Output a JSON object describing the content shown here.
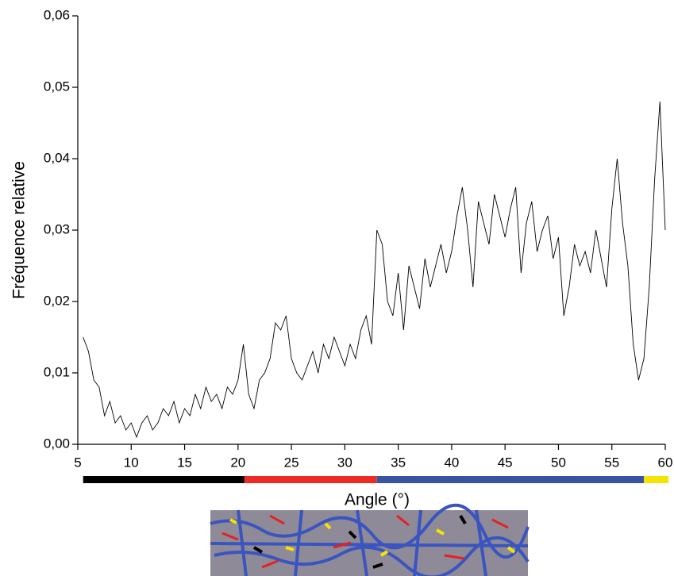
{
  "chart_data": {
    "type": "line",
    "xlabel": "Angle (°)",
    "ylabel": "Fréquence relative",
    "xlim": [
      5,
      60
    ],
    "ylim": [
      0,
      0.06
    ],
    "xticks": [
      5,
      10,
      15,
      20,
      25,
      30,
      35,
      40,
      45,
      50,
      55,
      60
    ],
    "yticks": [
      {
        "value": 0,
        "label": "0,00"
      },
      {
        "value": 0.01,
        "label": "0,01"
      },
      {
        "value": 0.02,
        "label": "0,02"
      },
      {
        "value": 0.03,
        "label": "0,03"
      },
      {
        "value": 0.04,
        "label": "0,04"
      },
      {
        "value": 0.05,
        "label": "0,05"
      },
      {
        "value": 0.06,
        "label": "0,06"
      }
    ],
    "color": "#000000",
    "x": [
      5.5,
      6,
      6.5,
      7,
      7.5,
      8,
      8.5,
      9,
      9.5,
      10,
      10.5,
      11,
      11.5,
      12,
      12.5,
      13,
      13.5,
      14,
      14.5,
      15,
      15.5,
      16,
      16.5,
      17,
      17.5,
      18,
      18.5,
      19,
      19.5,
      20,
      20.5,
      21,
      21.5,
      22,
      22.5,
      23,
      23.5,
      24,
      24.5,
      25,
      25.5,
      26,
      26.5,
      27,
      27.5,
      28,
      28.5,
      29,
      29.5,
      30,
      30.5,
      31,
      31.5,
      32,
      32.5,
      33,
      33.5,
      34,
      34.5,
      35,
      35.5,
      36,
      36.5,
      37,
      37.5,
      38,
      38.5,
      39,
      39.5,
      40,
      40.5,
      41,
      41.5,
      42,
      42.5,
      43,
      43.5,
      44,
      44.5,
      45,
      45.5,
      46,
      46.5,
      47,
      47.5,
      48,
      48.5,
      49,
      49.5,
      50,
      50.5,
      51,
      51.5,
      52,
      52.5,
      53,
      53.5,
      54,
      54.5,
      55,
      55.5,
      56,
      56.5,
      57,
      57.5,
      58,
      58.5,
      59,
      59.5,
      60
    ],
    "values": [
      0.015,
      0.013,
      0.009,
      0.008,
      0.004,
      0.006,
      0.003,
      0.004,
      0.002,
      0.003,
      0.001,
      0.003,
      0.004,
      0.002,
      0.003,
      0.005,
      0.004,
      0.006,
      0.003,
      0.005,
      0.004,
      0.007,
      0.005,
      0.008,
      0.006,
      0.007,
      0.005,
      0.008,
      0.007,
      0.009,
      0.014,
      0.007,
      0.005,
      0.009,
      0.01,
      0.012,
      0.017,
      0.016,
      0.018,
      0.012,
      0.01,
      0.009,
      0.011,
      0.013,
      0.01,
      0.014,
      0.012,
      0.015,
      0.013,
      0.011,
      0.014,
      0.012,
      0.016,
      0.018,
      0.014,
      0.03,
      0.028,
      0.02,
      0.018,
      0.024,
      0.016,
      0.025,
      0.022,
      0.019,
      0.026,
      0.022,
      0.025,
      0.028,
      0.024,
      0.027,
      0.032,
      0.036,
      0.03,
      0.022,
      0.034,
      0.031,
      0.028,
      0.035,
      0.032,
      0.029,
      0.033,
      0.036,
      0.024,
      0.031,
      0.034,
      0.027,
      0.03,
      0.032,
      0.026,
      0.029,
      0.018,
      0.022,
      0.028,
      0.025,
      0.027,
      0.024,
      0.03,
      0.026,
      0.022,
      0.033,
      0.04,
      0.031,
      0.025,
      0.014,
      0.009,
      0.012,
      0.022,
      0.037,
      0.048,
      0.03
    ],
    "bands": [
      {
        "start": 5.5,
        "end": 20.6,
        "color": "#000000"
      },
      {
        "start": 20.6,
        "end": 33,
        "color": "#ee2a24"
      },
      {
        "start": 33,
        "end": 58,
        "color": "#3a54a4"
      },
      {
        "start": 58,
        "end": 60.3,
        "color": "#f5e400"
      }
    ]
  }
}
